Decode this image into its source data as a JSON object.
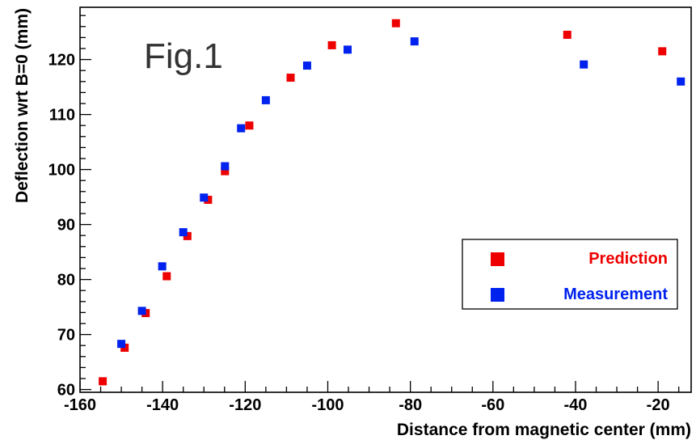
{
  "chart_data": {
    "type": "scatter",
    "annotation": "Fig.1",
    "xlabel": "Distance from magnetic center (mm)",
    "ylabel": "Deflection wrt B=0 (mm)",
    "xlim": [
      -160,
      -12
    ],
    "ylim": [
      59.5,
      129.5
    ],
    "x_ticks": [
      -160,
      -140,
      -120,
      -100,
      -80,
      -60,
      -40,
      -20
    ],
    "y_ticks": [
      60,
      70,
      80,
      90,
      100,
      110,
      120
    ],
    "grid": false,
    "legend_position": "bottom-right",
    "series": [
      {
        "name": "Prediction",
        "color": "#ee0000",
        "marker": "square",
        "points": [
          [
            -154.5,
            61.5
          ],
          [
            -149.2,
            67.6
          ],
          [
            -144.1,
            73.9
          ],
          [
            -139.0,
            80.6
          ],
          [
            -134.0,
            87.9
          ],
          [
            -129.0,
            94.5
          ],
          [
            -124.9,
            99.7
          ],
          [
            -119.0,
            108.0
          ],
          [
            -109.0,
            116.7
          ],
          [
            -99.0,
            122.6
          ],
          [
            -83.5,
            126.6
          ],
          [
            -42.0,
            124.5
          ],
          [
            -19.0,
            121.5
          ]
        ]
      },
      {
        "name": "Measurement",
        "color": "#0022ee",
        "marker": "square",
        "points": [
          [
            -150.0,
            68.3
          ],
          [
            -145.0,
            74.3
          ],
          [
            -140.1,
            82.4
          ],
          [
            -135.0,
            88.6
          ],
          [
            -130.0,
            94.9
          ],
          [
            -124.9,
            100.6
          ],
          [
            -121.0,
            107.5
          ],
          [
            -115.0,
            112.6
          ],
          [
            -105.0,
            118.9
          ],
          [
            -95.2,
            121.8
          ],
          [
            -79.0,
            123.3
          ],
          [
            -38.0,
            119.1
          ],
          [
            -14.5,
            116.0
          ]
        ]
      }
    ]
  }
}
